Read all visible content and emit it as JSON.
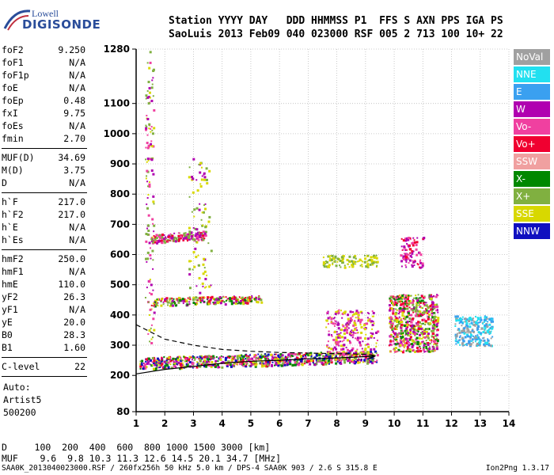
{
  "logo": {
    "line1": "Lowell",
    "line2": "DIGISONDE"
  },
  "header": {
    "line1": "Station YYYY DAY   DDD HHMMSS P1  FFS S AXN PPS IGA PS",
    "line2": "SaoLuis 2013 Feb09 040 023000 RSF 005 2 713 100 10+ 22"
  },
  "params": {
    "group1": [
      {
        "k": "foF2",
        "v": "9.250"
      },
      {
        "k": "foF1",
        "v": "N/A"
      },
      {
        "k": "foF1p",
        "v": "N/A"
      },
      {
        "k": "foE",
        "v": "N/A"
      },
      {
        "k": "foEp",
        "v": "0.48"
      },
      {
        "k": "fxI",
        "v": "9.75"
      },
      {
        "k": "foEs",
        "v": "N/A"
      },
      {
        "k": "fmin",
        "v": "2.70"
      }
    ],
    "group2": [
      {
        "k": "MUF(D)",
        "v": "34.69"
      },
      {
        "k": "M(D)",
        "v": "3.75"
      },
      {
        "k": "D",
        "v": "N/A"
      }
    ],
    "group3": [
      {
        "k": "h`F",
        "v": "217.0"
      },
      {
        "k": "h`F2",
        "v": "217.0"
      },
      {
        "k": "h`E",
        "v": "N/A"
      },
      {
        "k": "h`Es",
        "v": "N/A"
      }
    ],
    "group4": [
      {
        "k": "hmF2",
        "v": "250.0"
      },
      {
        "k": "hmF1",
        "v": "N/A"
      },
      {
        "k": "hmE",
        "v": "110.0"
      },
      {
        "k": "yF2",
        "v": "26.3"
      },
      {
        "k": "yF1",
        "v": "N/A"
      },
      {
        "k": "yE",
        "v": "20.0"
      },
      {
        "k": "B0",
        "v": "28.3"
      },
      {
        "k": "B1",
        "v": "1.60"
      }
    ],
    "group5": [
      {
        "k": "C-level",
        "v": "22"
      }
    ],
    "auto": [
      "Auto:",
      "Artist5",
      "500200"
    ]
  },
  "legend": [
    {
      "label": "NoVal",
      "color": "#a0a0a0"
    },
    {
      "label": "NNE",
      "color": "#22e0f0"
    },
    {
      "label": "E",
      "color": "#3aa0f0"
    },
    {
      "label": "W",
      "color": "#b000b0"
    },
    {
      "label": "Vo-",
      "color": "#f040a0"
    },
    {
      "label": "Vo+",
      "color": "#f00030"
    },
    {
      "label": "SSW",
      "color": "#f0a0a0"
    },
    {
      "label": "X-",
      "color": "#008800"
    },
    {
      "label": "X+",
      "color": "#80b040"
    },
    {
      "label": "SSE",
      "color": "#d8d800"
    },
    {
      "label": "NNW",
      "color": "#1010c0"
    }
  ],
  "dmuf": {
    "line1": "D     100  200  400  600  800 1000 1500 3000 [km]",
    "line2": "MUF    9.6  9.8 10.3 11.3 12.6 14.5 20.1 34.7 [MHz]"
  },
  "footer": {
    "left": "SAA0K_2013040023000.RSF / 260fx256h 50 kHz 5.0 km / DPS-4 SAA0K 903 / 2.6 S 315.8 E",
    "right": "Ion2Png 1.3.17"
  },
  "chart_data": {
    "type": "scatter",
    "xlim": [
      1,
      14
    ],
    "ylim": [
      80,
      1280
    ],
    "xticks": [
      1,
      2,
      3,
      4,
      5,
      6,
      7,
      8,
      9,
      10,
      11,
      12,
      13,
      14
    ],
    "yticks": [
      80,
      200,
      300,
      400,
      500,
      600,
      700,
      800,
      900,
      1000,
      1100,
      1280
    ],
    "grid": true,
    "clusters": [
      {
        "x": [
          1.1,
          9.4
        ],
        "y": [
          222,
          262
        ],
        "slope": 22,
        "n": 900,
        "colors": [
          "#f00030",
          "#f040a0",
          "#b000b0",
          "#d8d800",
          "#80b040",
          "#008800",
          "#1010c0"
        ]
      },
      {
        "x": [
          1.5,
          3.4
        ],
        "y": [
          640,
          668
        ],
        "slope": 12,
        "n": 180,
        "colors": [
          "#b000b0",
          "#f040a0",
          "#f00030",
          "#80b040"
        ]
      },
      {
        "x": [
          1.5,
          5.4
        ],
        "y": [
          432,
          458
        ],
        "slope": 10,
        "n": 260,
        "colors": [
          "#f00030",
          "#b000b0",
          "#008800",
          "#80b040",
          "#d8d800"
        ]
      },
      {
        "x": [
          7.5,
          9.4
        ],
        "y": [
          560,
          600
        ],
        "slope": 0,
        "n": 120,
        "colors": [
          "#d8d800",
          "#80b040"
        ]
      },
      {
        "x": [
          9.8,
          11.5
        ],
        "y": [
          280,
          470
        ],
        "slope": 0,
        "n": 700,
        "colors": [
          "#d8d800",
          "#80b040",
          "#b000b0",
          "#f00030",
          "#008800",
          "#f040a0"
        ]
      },
      {
        "x": [
          12.1,
          13.4
        ],
        "y": [
          300,
          400
        ],
        "slope": 0,
        "n": 260,
        "colors": [
          "#22e0f0",
          "#3aa0f0",
          "#a0a0a0"
        ]
      },
      {
        "x": [
          7.6,
          9.4
        ],
        "y": [
          270,
          420
        ],
        "slope": 0,
        "n": 260,
        "colors": [
          "#b000b0",
          "#d8d800",
          "#f040a0"
        ]
      },
      {
        "x": [
          10.2,
          11.0
        ],
        "y": [
          560,
          660
        ],
        "slope": 0,
        "n": 90,
        "colors": [
          "#f00030",
          "#f040a0",
          "#b000b0"
        ]
      },
      {
        "x": [
          1.3,
          1.6
        ],
        "y": [
          300,
          1280
        ],
        "slope": 0,
        "n": 130,
        "colors": [
          "#f040a0",
          "#b000b0",
          "#80b040",
          "#d8d800"
        ]
      },
      {
        "x": [
          2.8,
          3.6
        ],
        "y": [
          470,
          920
        ],
        "slope": 0,
        "n": 90,
        "colors": [
          "#b000b0",
          "#d8d800",
          "#80b040"
        ]
      }
    ],
    "traces": [
      {
        "name": "solid",
        "style": "solid",
        "x": [
          1.0,
          2.0,
          3.0,
          4.0,
          5.0,
          6.0,
          7.0,
          8.0,
          9.0,
          9.35,
          9.1
        ],
        "y": [
          205,
          220,
          230,
          240,
          247,
          250,
          255,
          258,
          262,
          265,
          255
        ]
      },
      {
        "name": "dashed",
        "style": "dashed",
        "x": [
          1.0,
          2.0,
          3.0,
          4.0,
          5.0,
          6.0,
          7.0,
          8.0,
          9.0,
          9.4
        ],
        "y": [
          368,
          320,
          300,
          286,
          280,
          276,
          274,
          272,
          270,
          266
        ]
      }
    ]
  }
}
